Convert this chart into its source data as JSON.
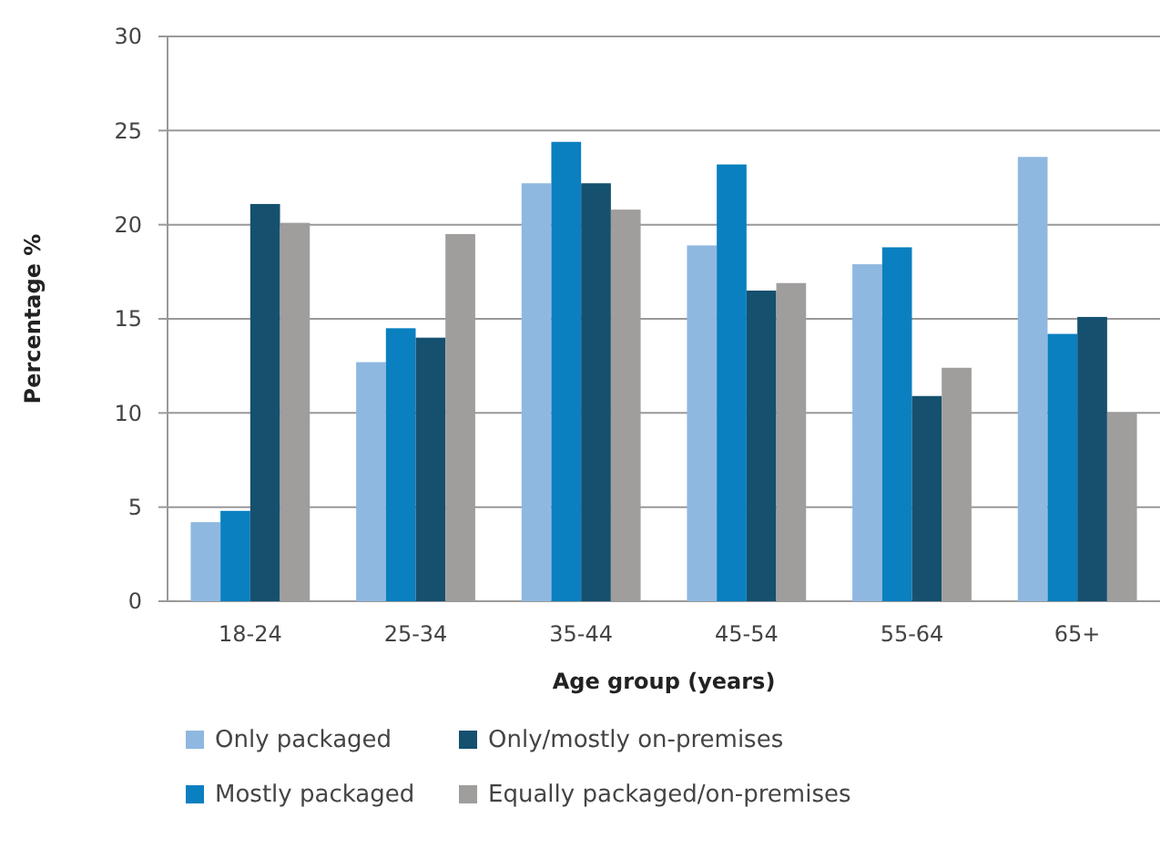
{
  "chart_data": {
    "type": "bar",
    "xlabel": "Age group (years)",
    "ylabel": "Percentage %",
    "categories": [
      "18-24",
      "25-34",
      "35-44",
      "45-54",
      "55-64",
      "65+"
    ],
    "series": [
      {
        "name": "Only packaged",
        "color": "#8fb8e0",
        "values": [
          4.2,
          12.7,
          22.2,
          18.9,
          17.9,
          23.6
        ]
      },
      {
        "name": "Mostly packaged",
        "color": "#0a80c0",
        "values": [
          4.8,
          14.5,
          24.4,
          23.2,
          18.8,
          14.2
        ]
      },
      {
        "name": "Only/mostly on-premises",
        "color": "#15506f",
        "values": [
          21.1,
          14.0,
          22.2,
          16.5,
          10.9,
          15.1
        ]
      },
      {
        "name": "Equally packaged/on-premises",
        "color": "#a09d9d",
        "values": [
          20.1,
          19.5,
          20.8,
          16.9,
          12.4,
          10.0
        ]
      }
    ],
    "ylim": [
      0,
      30
    ],
    "yticks": [
      0,
      5,
      10,
      15,
      20,
      25,
      30
    ],
    "grid": "y",
    "legend": "bottom"
  }
}
